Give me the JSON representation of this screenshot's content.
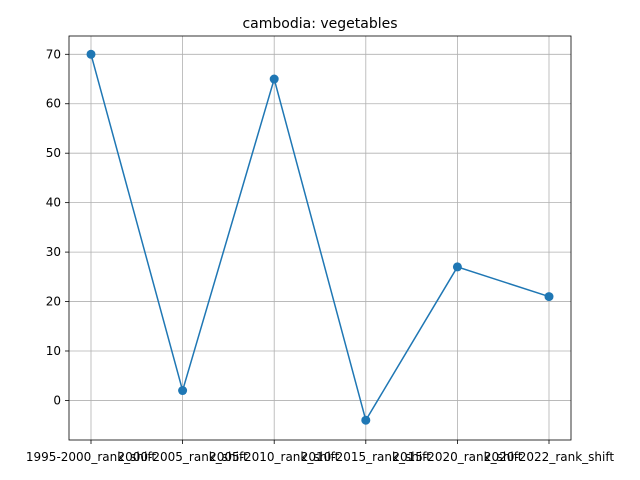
{
  "chart_data": {
    "type": "line",
    "title": "cambodia: vegetables",
    "xlabel": "",
    "ylabel": "",
    "categories": [
      "1995-2000_rank_shift",
      "2000-2005_rank_shift",
      "2005-2010_rank_shift",
      "2010-2015_rank_shift",
      "2015-2020_rank_shift",
      "2020-2022_rank_shift"
    ],
    "values": [
      70,
      2,
      65,
      -4,
      27,
      21
    ],
    "ylim": [
      -8,
      73.7
    ],
    "yticks": [
      0,
      10,
      20,
      30,
      40,
      50,
      60,
      70
    ],
    "grid": true,
    "marker": "circle",
    "color": "#1f77b4"
  }
}
